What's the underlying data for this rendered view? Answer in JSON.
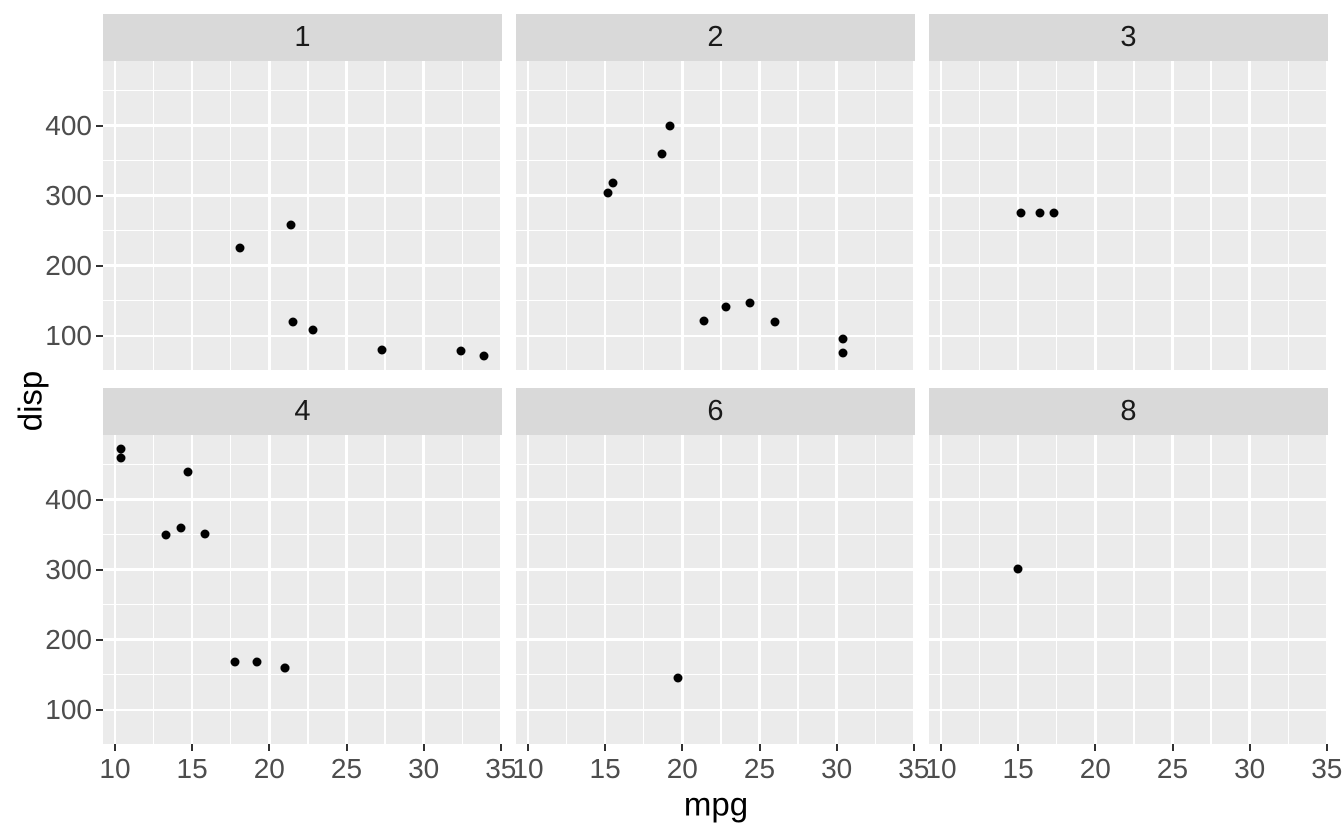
{
  "chart_data": {
    "type": "scatter",
    "title": "",
    "xlabel": "mpg",
    "ylabel": "disp",
    "x_ticks": [
      10,
      15,
      20,
      25,
      30,
      35
    ],
    "y_ticks": [
      100,
      200,
      300,
      400
    ],
    "x_minor_breaks": [
      12.5,
      17.5,
      22.5,
      27.5,
      32.5
    ],
    "y_minor_breaks": [
      150,
      250,
      350,
      450
    ],
    "x_range": [
      9.225,
      35.075
    ],
    "y_range": [
      51.055,
      492.045
    ],
    "grid": "on",
    "legend_position": "none",
    "facet_layout": {
      "rows": 2,
      "cols": 3
    },
    "facets": [
      {
        "label": "1",
        "points": [
          [
            22.8,
            108
          ],
          [
            21.4,
            258
          ],
          [
            18.1,
            225
          ],
          [
            32.4,
            78.7
          ],
          [
            33.9,
            71.1
          ],
          [
            21.5,
            120.1
          ],
          [
            27.3,
            79
          ]
        ]
      },
      {
        "label": "2",
        "points": [
          [
            18.7,
            360
          ],
          [
            24.4,
            146.7
          ],
          [
            22.8,
            140.8
          ],
          [
            30.4,
            75.7
          ],
          [
            15.5,
            318
          ],
          [
            15.2,
            304
          ],
          [
            19.2,
            400
          ],
          [
            26.0,
            120.3
          ],
          [
            30.4,
            95.1
          ],
          [
            21.4,
            121
          ]
        ]
      },
      {
        "label": "3",
        "points": [
          [
            16.4,
            275.8
          ],
          [
            17.3,
            275.8
          ],
          [
            15.2,
            275.8
          ]
        ]
      },
      {
        "label": "4",
        "points": [
          [
            21.0,
            160
          ],
          [
            21.0,
            160
          ],
          [
            14.3,
            360
          ],
          [
            17.8,
            167.6
          ],
          [
            19.2,
            167.6
          ],
          [
            10.4,
            472
          ],
          [
            10.4,
            460
          ],
          [
            14.7,
            440
          ],
          [
            13.3,
            350
          ],
          [
            15.8,
            351
          ]
        ]
      },
      {
        "label": "6",
        "points": [
          [
            19.7,
            145
          ]
        ]
      },
      {
        "label": "8",
        "points": [
          [
            15.0,
            301
          ]
        ]
      }
    ],
    "colors": {
      "figure_background": "#ffffff",
      "panel_background": "#ebebeb",
      "strip_background": "#d9d9d9",
      "gridline": "#ffffff",
      "point": "#000000",
      "axis_text": "#4d4d4d",
      "strip_text": "#1a1a1a",
      "axis_title": "#000000",
      "tick_mark": "#333333"
    }
  }
}
